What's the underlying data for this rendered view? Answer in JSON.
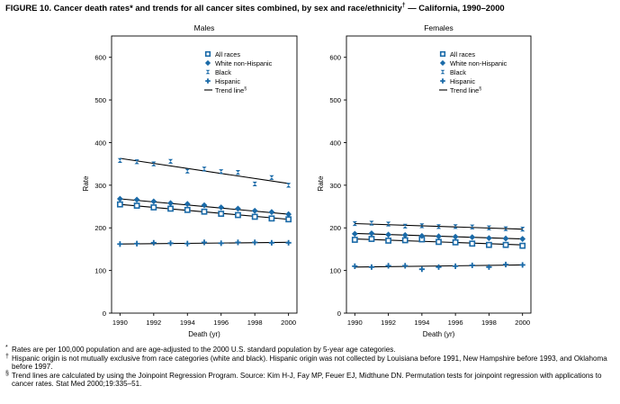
{
  "figure": {
    "title": "FIGURE 10. Cancer death rates* and trends for all cancer sites combined, by sex and race/ethnicity",
    "title_mark": "†",
    "title_suffix": " — California, 1990–2000"
  },
  "chart_data": [
    {
      "type": "scatter",
      "title": "Males",
      "xlabel": "Death (yr)",
      "ylabel": "Rate",
      "xlim": [
        1989.5,
        2000.5
      ],
      "ylim": [
        0,
        650
      ],
      "xticks": [
        1990,
        1992,
        1994,
        1996,
        1998,
        2000
      ],
      "yticks": [
        0,
        100,
        200,
        300,
        400,
        500,
        600
      ],
      "x": [
        1990,
        1991,
        1992,
        1993,
        1994,
        1995,
        1996,
        1997,
        1998,
        1999,
        2000
      ],
      "legend": [
        "All races",
        "White non-Hispanic",
        "Black",
        "Hispanic",
        "Trend line"
      ],
      "legend_mark": "§",
      "series": [
        {
          "name": "All races",
          "marker": "square",
          "values": [
            255,
            252,
            248,
            245,
            242,
            238,
            233,
            230,
            226,
            222,
            220
          ],
          "trend": [
            255,
            220
          ]
        },
        {
          "name": "White non-Hispanic",
          "marker": "diamond",
          "values": [
            268,
            266,
            262,
            258,
            256,
            253,
            248,
            245,
            240,
            237,
            232
          ],
          "trend": [
            268,
            232
          ]
        },
        {
          "name": "Black",
          "marker": "bowtie",
          "values": [
            358,
            355,
            350,
            356,
            333,
            338,
            332,
            330,
            303,
            318,
            300
          ],
          "trend": [
            363,
            304
          ]
        },
        {
          "name": "Hispanic",
          "marker": "cross",
          "values": [
            162,
            163,
            165,
            164,
            163,
            166,
            164,
            166,
            166,
            165,
            165
          ],
          "trend": [
            162,
            166
          ]
        }
      ]
    },
    {
      "type": "scatter",
      "title": "Females",
      "xlabel": "Death (yr)",
      "ylabel": "Rate",
      "xlim": [
        1989.5,
        2000.5
      ],
      "ylim": [
        0,
        650
      ],
      "xticks": [
        1990,
        1992,
        1994,
        1996,
        1998,
        2000
      ],
      "yticks": [
        0,
        100,
        200,
        300,
        400,
        500,
        600
      ],
      "x": [
        1990,
        1991,
        1992,
        1993,
        1994,
        1995,
        1996,
        1997,
        1998,
        1999,
        2000
      ],
      "legend": [
        "All races",
        "White non-Hispanic",
        "Black",
        "Hispanic",
        "Trend line"
      ],
      "legend_mark": "§",
      "series": [
        {
          "name": "All races",
          "marker": "square",
          "values": [
            172,
            174,
            170,
            171,
            173,
            167,
            166,
            163,
            160,
            160,
            158
          ],
          "trend": [
            174,
            160
          ]
        },
        {
          "name": "White non-Hispanic",
          "marker": "diamond",
          "values": [
            186,
            187,
            184,
            183,
            181,
            180,
            179,
            178,
            176,
            175,
            174
          ],
          "trend": [
            187,
            174
          ]
        },
        {
          "name": "Black",
          "marker": "bowtie",
          "values": [
            210,
            211,
            209,
            204,
            205,
            203,
            203,
            202,
            200,
            198,
            197
          ],
          "trend": [
            210,
            197
          ]
        },
        {
          "name": "Hispanic",
          "marker": "cross",
          "values": [
            110,
            108,
            111,
            111,
            103,
            108,
            110,
            112,
            108,
            114,
            113
          ],
          "trend": [
            108,
            113
          ]
        }
      ]
    }
  ],
  "footnotes": [
    {
      "mark": "*",
      "text": "Rates are per 100,000 population and are age-adjusted to the 2000 U.S. standard population by 5-year age categories."
    },
    {
      "mark": "†",
      "text": "Hispanic origin is not mutually exclusive from race categories (white and black). Hispanic origin was not collected by Louisiana before 1991, New Hampshire before 1993, and Oklahoma before 1997."
    },
    {
      "mark": "§",
      "text": "Trend lines are calculated by using the Joinpoint Regression Program. Source: Kim H-J, Fay MP, Feuer EJ, Midthune DN. Permutation tests for joinpoint regression with applications to cancer rates. Stat Med 2000;19:335–51."
    }
  ],
  "colors": {
    "marker": "#1a6aa8",
    "axis": "#000000",
    "trend": "#000000"
  }
}
